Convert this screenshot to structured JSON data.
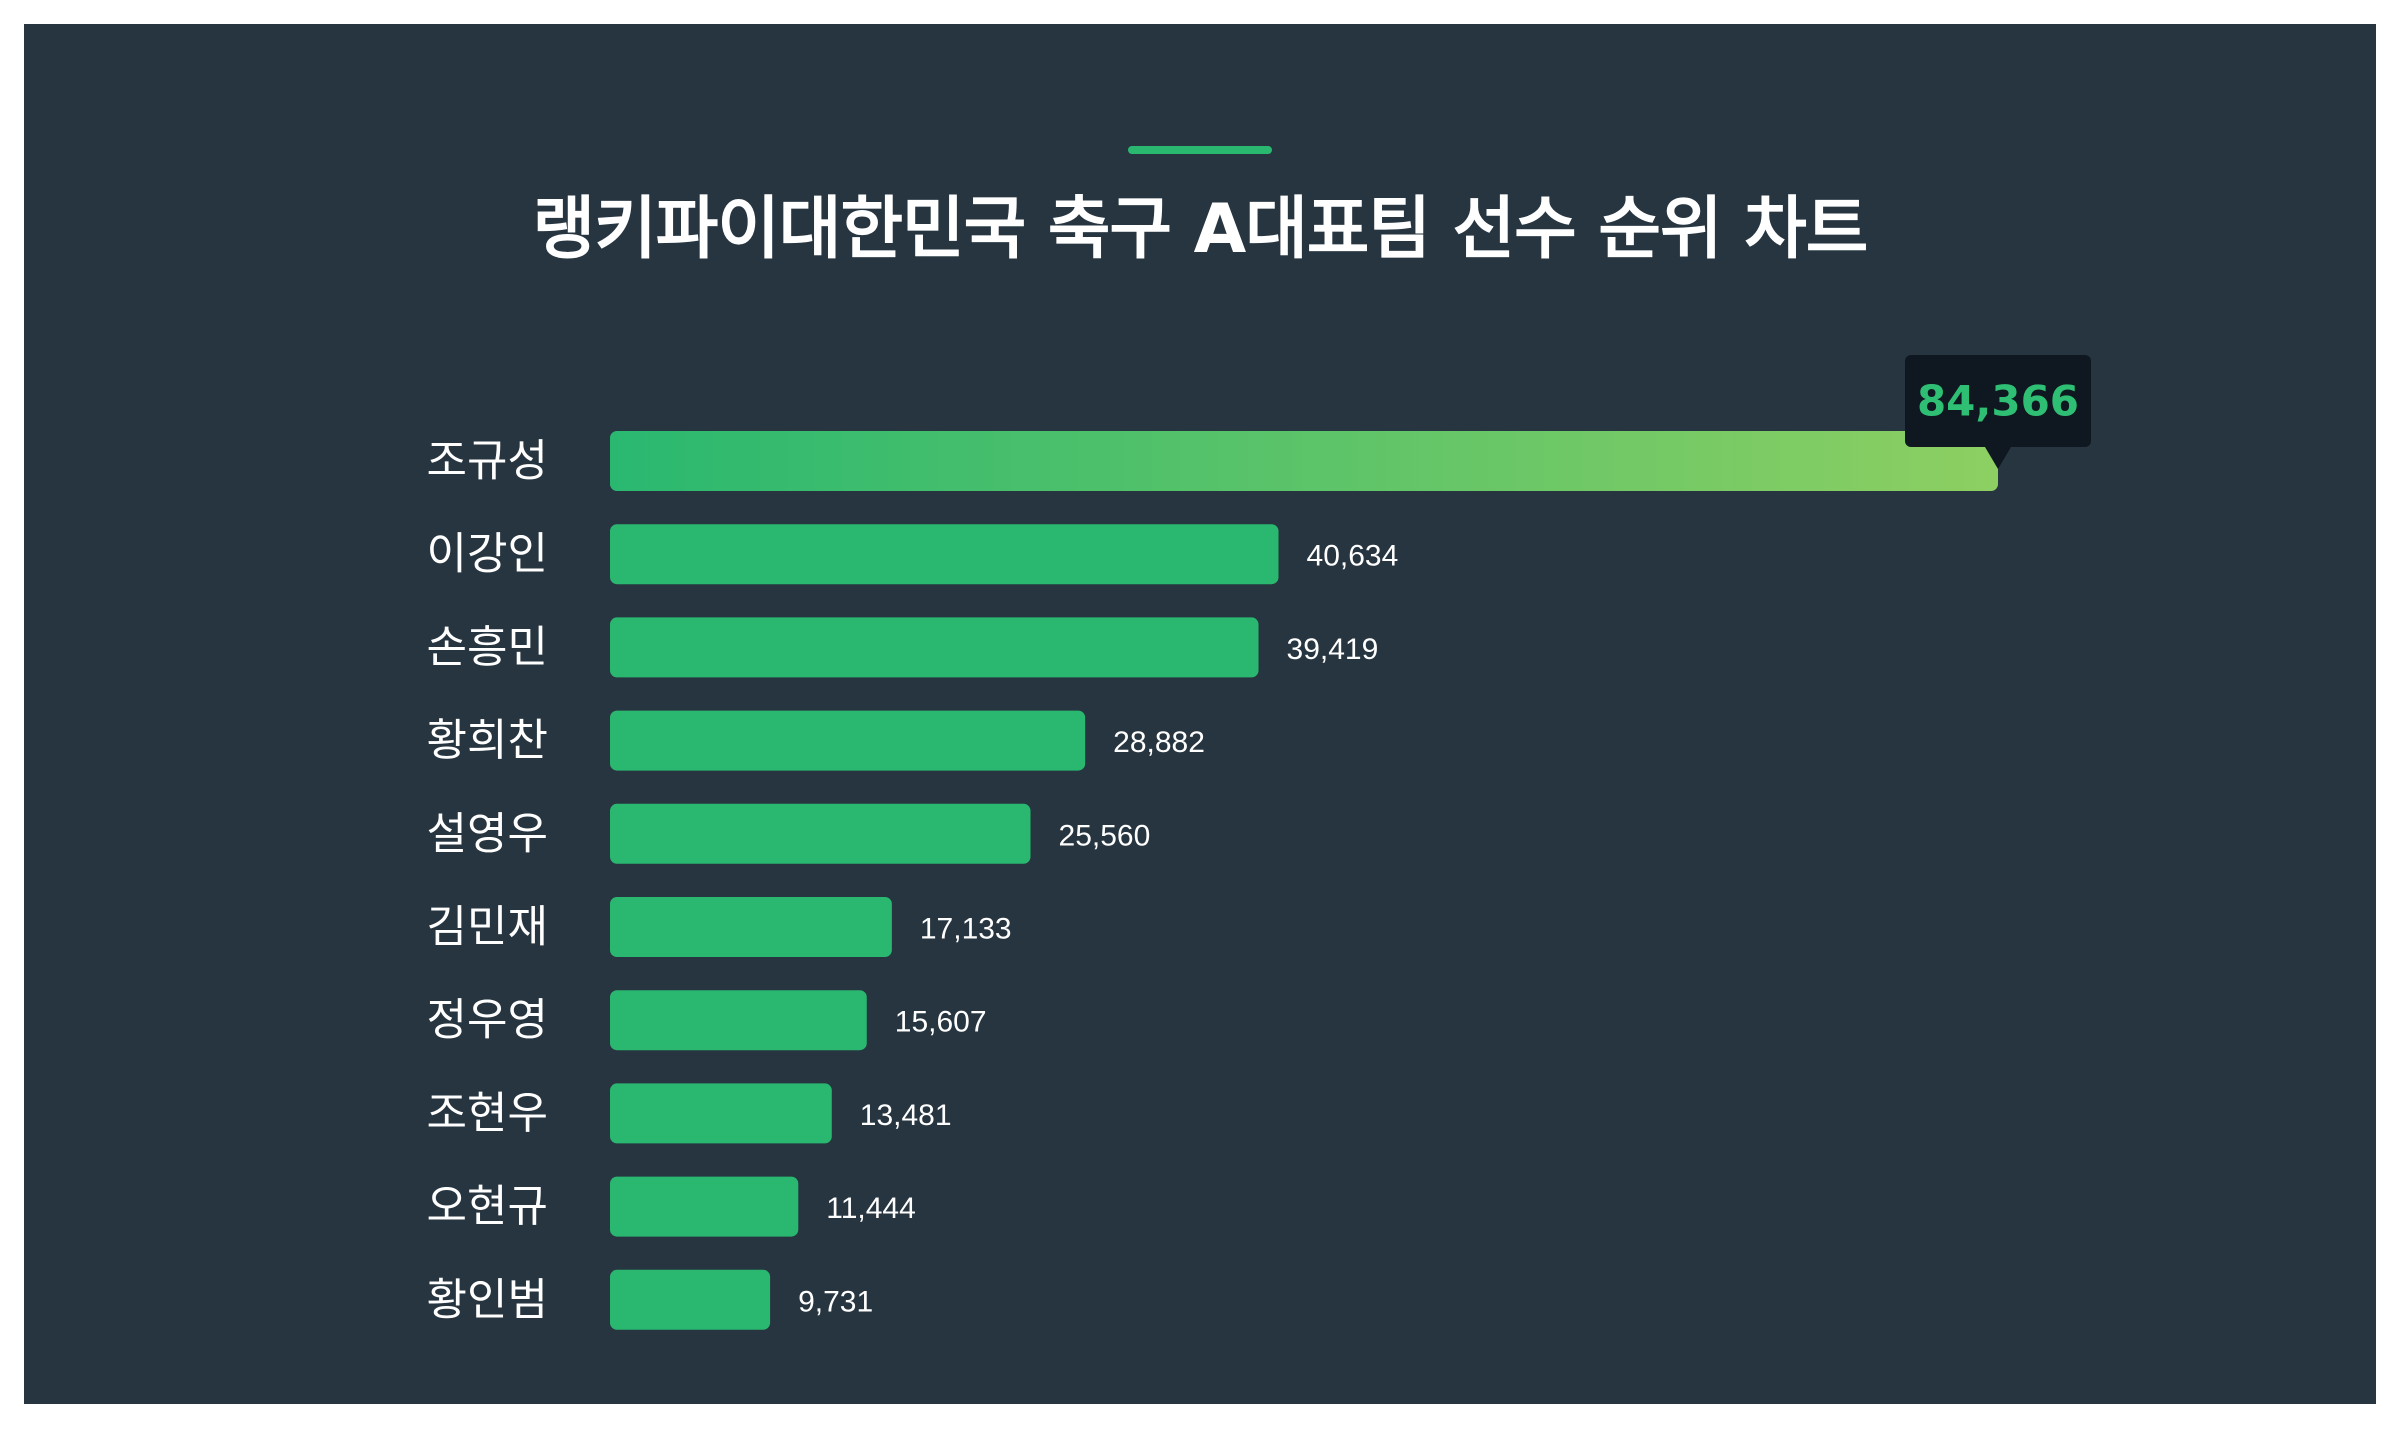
{
  "title": "랭키파이대한민국 축구 A대표팀 선수 순위 차트",
  "colors": {
    "background": "#263540",
    "bar": "#2ab870",
    "gradient_start": "#2ab870",
    "gradient_end": "#8dcf62",
    "tooltip_bg": "#0f1820",
    "tooltip_text": "#2fbf74",
    "accent": "#2ab870"
  },
  "chart_data": {
    "type": "bar",
    "orientation": "horizontal",
    "categories": [
      "조규성",
      "이강인",
      "손흥민",
      "황희찬",
      "설영우",
      "김민재",
      "정우영",
      "조현우",
      "오현규",
      "황인범"
    ],
    "values": [
      84366,
      40634,
      39419,
      28882,
      25560,
      17133,
      15607,
      13481,
      11444,
      9731
    ],
    "value_labels": [
      "84,366",
      "40,634",
      "39,419",
      "28,882",
      "25,560",
      "17,133",
      "15,607",
      "13,481",
      "11,444",
      "9,731"
    ],
    "highlight_index": 0,
    "xlim": [
      0,
      84366
    ],
    "grid": false,
    "legend": "none"
  }
}
